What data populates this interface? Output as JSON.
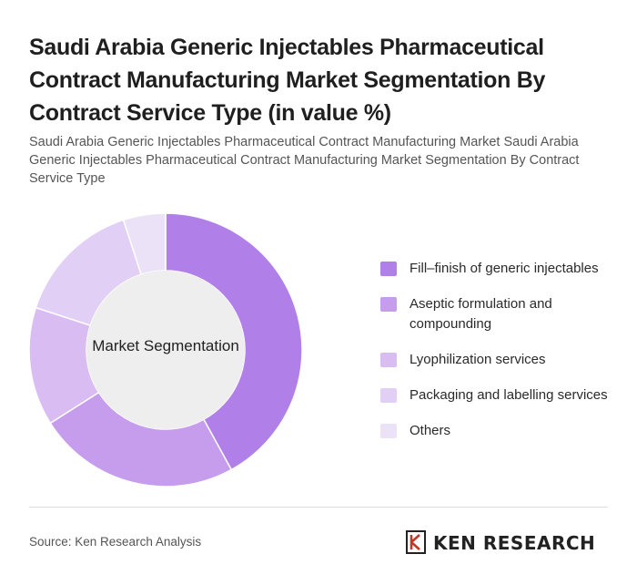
{
  "header": {
    "title": "Saudi Arabia Generic Injectables Pharmaceutical Contract Manufacturing Market Segmentation By Contract Service Type (in value %)",
    "subtitle": "Saudi Arabia Generic Injectables Pharmaceutical Contract Manufacturing Market Saudi Arabia Generic Injectables Pharmaceutical Contract Manufacturing Market Segmentation By Contract Service Type"
  },
  "chart_data": {
    "type": "pie",
    "donut": true,
    "center_label": "Market Segmentation",
    "categories": [
      "Fill–finish of generic injectables",
      "Aseptic formulation and compounding",
      "Lyophilization services",
      "Packaging and labelling services",
      "Others"
    ],
    "values": [
      42,
      24,
      14,
      15,
      5
    ],
    "colors": [
      "#b07fe8",
      "#c69ced",
      "#d8bcf2",
      "#e2cff5",
      "#ece2f8"
    ],
    "legend_position": "right"
  },
  "footer": {
    "source": "Source: Ken Research Analysis",
    "brand": "KEN RESEARCH"
  }
}
